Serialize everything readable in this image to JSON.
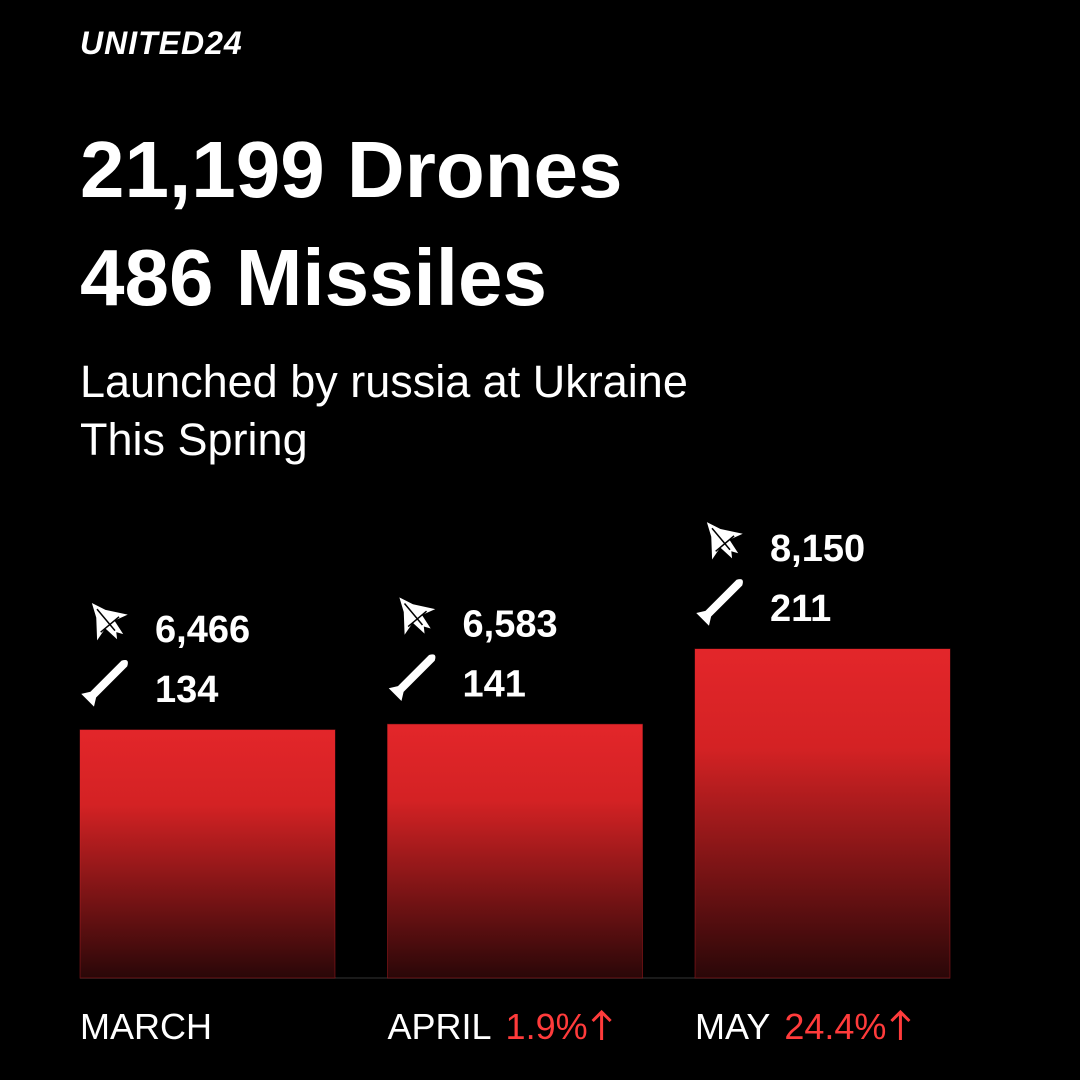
{
  "brand": "UNITED24",
  "chart_data": {
    "type": "bar",
    "title": [
      "21,199 Drones",
      "486 Missiles"
    ],
    "subtitle": [
      "Launched by russia at Ukraine",
      "This Spring"
    ],
    "categories": [
      "MARCH",
      "APRIL",
      "MAY"
    ],
    "series": [
      {
        "values": [
          6466,
          6583,
          8150
        ],
        "value_labels": [
          "6,466",
          "6,583",
          "8,150"
        ],
        "color": "#e3262a"
      },
      {
        "values": [
          134,
          141,
          211
        ]
      }
    ],
    "growth": {
      "values": [
        null,
        1.9,
        24.4
      ],
      "value_labels": [
        null,
        "1.9%",
        "24.4%"
      ],
      "color": "#ff3b3b"
    },
    "ylim": [
      1300,
      8150
    ]
  }
}
